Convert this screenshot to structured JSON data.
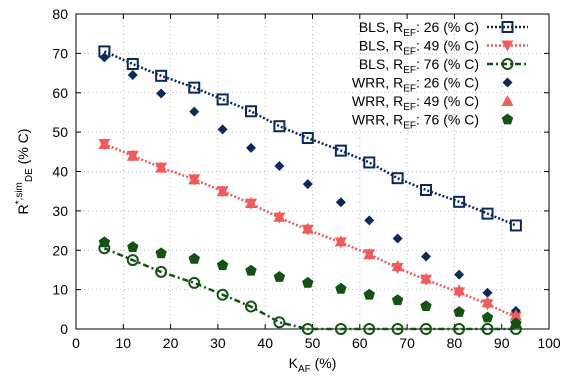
{
  "chart_data": {
    "type": "scatter",
    "title": "",
    "xlabel": {
      "main": "K",
      "sub": "AF",
      "rest": " (%)"
    },
    "ylabel": {
      "main": "R",
      "sup": "*,sim",
      "sub": "DE",
      "rest": " (% C)"
    },
    "xlim": [
      0,
      100
    ],
    "ylim": [
      0,
      80
    ],
    "xticks": [
      0,
      10,
      20,
      30,
      40,
      50,
      60,
      70,
      80,
      90,
      100
    ],
    "yticks": [
      0,
      10,
      20,
      30,
      40,
      50,
      60,
      70,
      80
    ],
    "grid": true,
    "legend_position": "top-right",
    "series": [
      {
        "name": {
          "main": "BLS, R",
          "sub": "EF",
          "rest": ": 26 (% C)"
        },
        "color": "#0b2a5c",
        "marker": "open-square",
        "line": "dotted",
        "x": [
          6,
          12,
          18,
          25,
          31,
          37,
          43,
          49,
          56,
          62,
          68,
          74,
          81,
          87,
          93
        ],
        "y": [
          70.5,
          67.3,
          64.3,
          61.3,
          58.3,
          55.3,
          51.5,
          48.5,
          45.3,
          42.3,
          38.3,
          35.3,
          32.3,
          29.3,
          26.3
        ]
      },
      {
        "name": {
          "main": "BLS, R",
          "sub": "EF",
          "rest": ": 49 (% C)"
        },
        "color": "#f05c5c",
        "marker": "down-triangle",
        "line": "dotted",
        "x": [
          6,
          12,
          18,
          25,
          31,
          37,
          43,
          49,
          56,
          62,
          68,
          74,
          81,
          87,
          93
        ],
        "y": [
          47,
          44,
          41,
          38,
          35,
          31.8,
          28.3,
          25.2,
          22,
          19,
          15.5,
          12.5,
          9.3,
          6.3,
          3
        ]
      },
      {
        "name": {
          "main": "BLS, R",
          "sub": "EF",
          "rest": ": 76 (% C)"
        },
        "color": "#145214",
        "marker": "open-circle",
        "line": "dash-dot",
        "x": [
          6,
          12,
          18,
          25,
          31,
          37,
          43,
          49,
          56,
          62,
          68,
          74,
          81,
          87,
          93
        ],
        "y": [
          20.5,
          17.5,
          14.5,
          11.7,
          8.7,
          5.7,
          1.7,
          0,
          0,
          0,
          0,
          0,
          0,
          0,
          0
        ]
      },
      {
        "name": {
          "main": "WRR, R",
          "sub": "EF",
          "rest": ": 26 (% C)"
        },
        "color": "#0b2a5c",
        "marker": "diamond",
        "line": "none",
        "x": [
          6,
          12,
          18,
          25,
          31,
          37,
          43,
          49,
          56,
          62,
          68,
          74,
          81,
          87,
          93
        ],
        "y": [
          69,
          64.5,
          59.8,
          55.2,
          50.7,
          46,
          41.4,
          36.8,
          32.2,
          27.6,
          23,
          18.4,
          13.8,
          9.2,
          4.6
        ]
      },
      {
        "name": {
          "main": "WRR, R",
          "sub": "EF",
          "rest": ": 49 (% C)"
        },
        "color": "#f05c5c",
        "marker": "up-triangle",
        "line": "none",
        "x": [
          6,
          12,
          18,
          25,
          31,
          37,
          43,
          49,
          56,
          62,
          68,
          74,
          81,
          87,
          93
        ],
        "y": [
          47,
          44,
          41,
          38,
          35,
          32,
          28.5,
          25.5,
          22.3,
          19,
          16,
          12.8,
          9.8,
          6.8,
          3.5
        ]
      },
      {
        "name": {
          "main": "WRR, R",
          "sub": "EF",
          "rest": ": 76 (% C)"
        },
        "color": "#145214",
        "marker": "pentagon",
        "line": "none",
        "x": [
          6,
          12,
          18,
          25,
          31,
          37,
          43,
          49,
          56,
          62,
          68,
          74,
          81,
          87,
          93
        ],
        "y": [
          22,
          20.8,
          19.2,
          17.8,
          16.2,
          14.8,
          13.2,
          11.7,
          10.2,
          8.7,
          7.3,
          5.8,
          4.3,
          2.9,
          1.4
        ]
      }
    ]
  }
}
